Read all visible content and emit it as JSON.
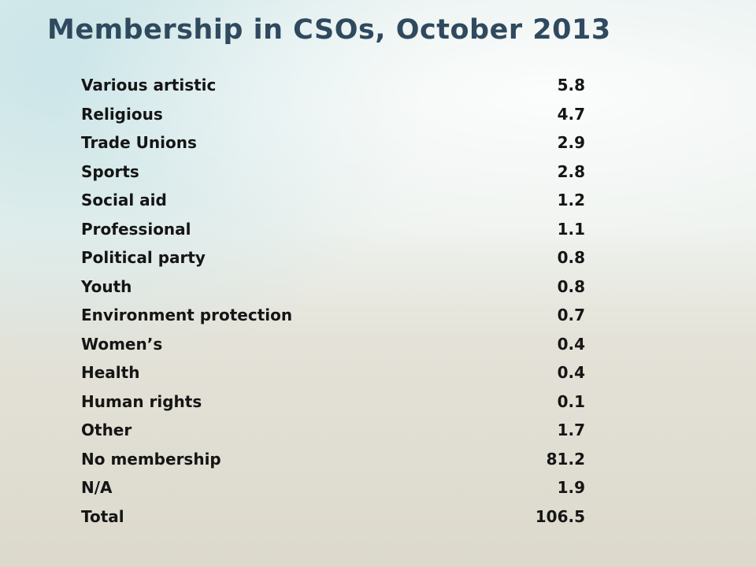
{
  "title": "Membership in CSOs, October 2013",
  "table": {
    "rows": [
      [
        "Various artistic",
        "5.8"
      ],
      [
        "Religious",
        "4.7"
      ],
      [
        "Trade Unions",
        "2.9"
      ],
      [
        "Sports",
        "2.8"
      ],
      [
        "Social aid",
        "1.2"
      ],
      [
        "Professional",
        "1.1"
      ],
      [
        "Political party",
        "0.8"
      ],
      [
        "Youth",
        "0.8"
      ],
      [
        "Environment protection",
        "0.7"
      ],
      [
        "Women’s",
        "0.4"
      ],
      [
        "Health",
        "0.4"
      ],
      [
        "Human rights",
        "0.1"
      ],
      [
        "Other",
        "1.7"
      ],
      [
        "No membership",
        "81.2"
      ],
      [
        "N/A",
        "1.9"
      ],
      [
        "Total",
        "106.5"
      ]
    ]
  }
}
